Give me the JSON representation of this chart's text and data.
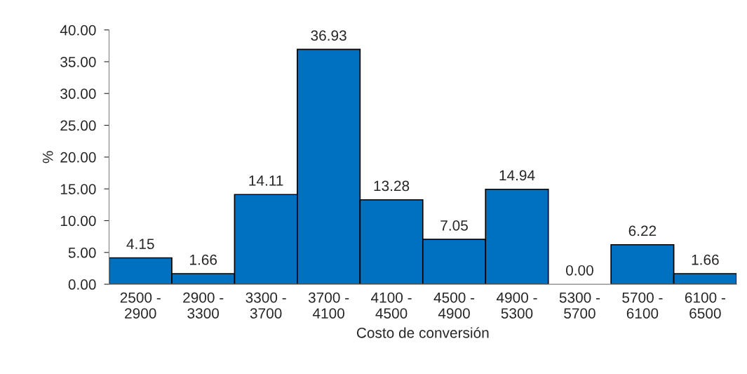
{
  "chart_data": {
    "type": "bar",
    "xlabel": "Costo de conversión",
    "ylabel": "%",
    "categories": [
      "2500 -\n2900",
      "2900 -\n3300",
      "3300 -\n3700",
      "3700 -\n4100",
      "4100 -\n4500",
      "4500 -\n4900",
      "4900 -\n5300",
      "5300 -\n5700",
      "5700 -\n6100",
      "6100 -\n6500"
    ],
    "values": [
      4.15,
      1.66,
      14.11,
      36.93,
      13.28,
      7.05,
      14.94,
      0.0,
      6.22,
      1.66
    ],
    "value_labels": [
      "4.15",
      "1.66",
      "14.11",
      "36.93",
      "13.28",
      "7.05",
      "14.94",
      "0.00",
      "6.22",
      "1.66"
    ],
    "color": "#0070c0",
    "ylim": [
      0,
      40
    ],
    "yticks": [
      {
        "value": 0,
        "label": "0.00"
      },
      {
        "value": 5,
        "label": "5.00"
      },
      {
        "value": 10,
        "label": "10.00"
      },
      {
        "value": 15,
        "label": "15.00"
      },
      {
        "value": 20,
        "label": "20.00"
      },
      {
        "value": 25,
        "label": "25.00"
      },
      {
        "value": 30,
        "label": "30.00"
      },
      {
        "value": 35,
        "label": "35.00"
      },
      {
        "value": 40,
        "label": "40.00"
      }
    ],
    "grid": false
  }
}
